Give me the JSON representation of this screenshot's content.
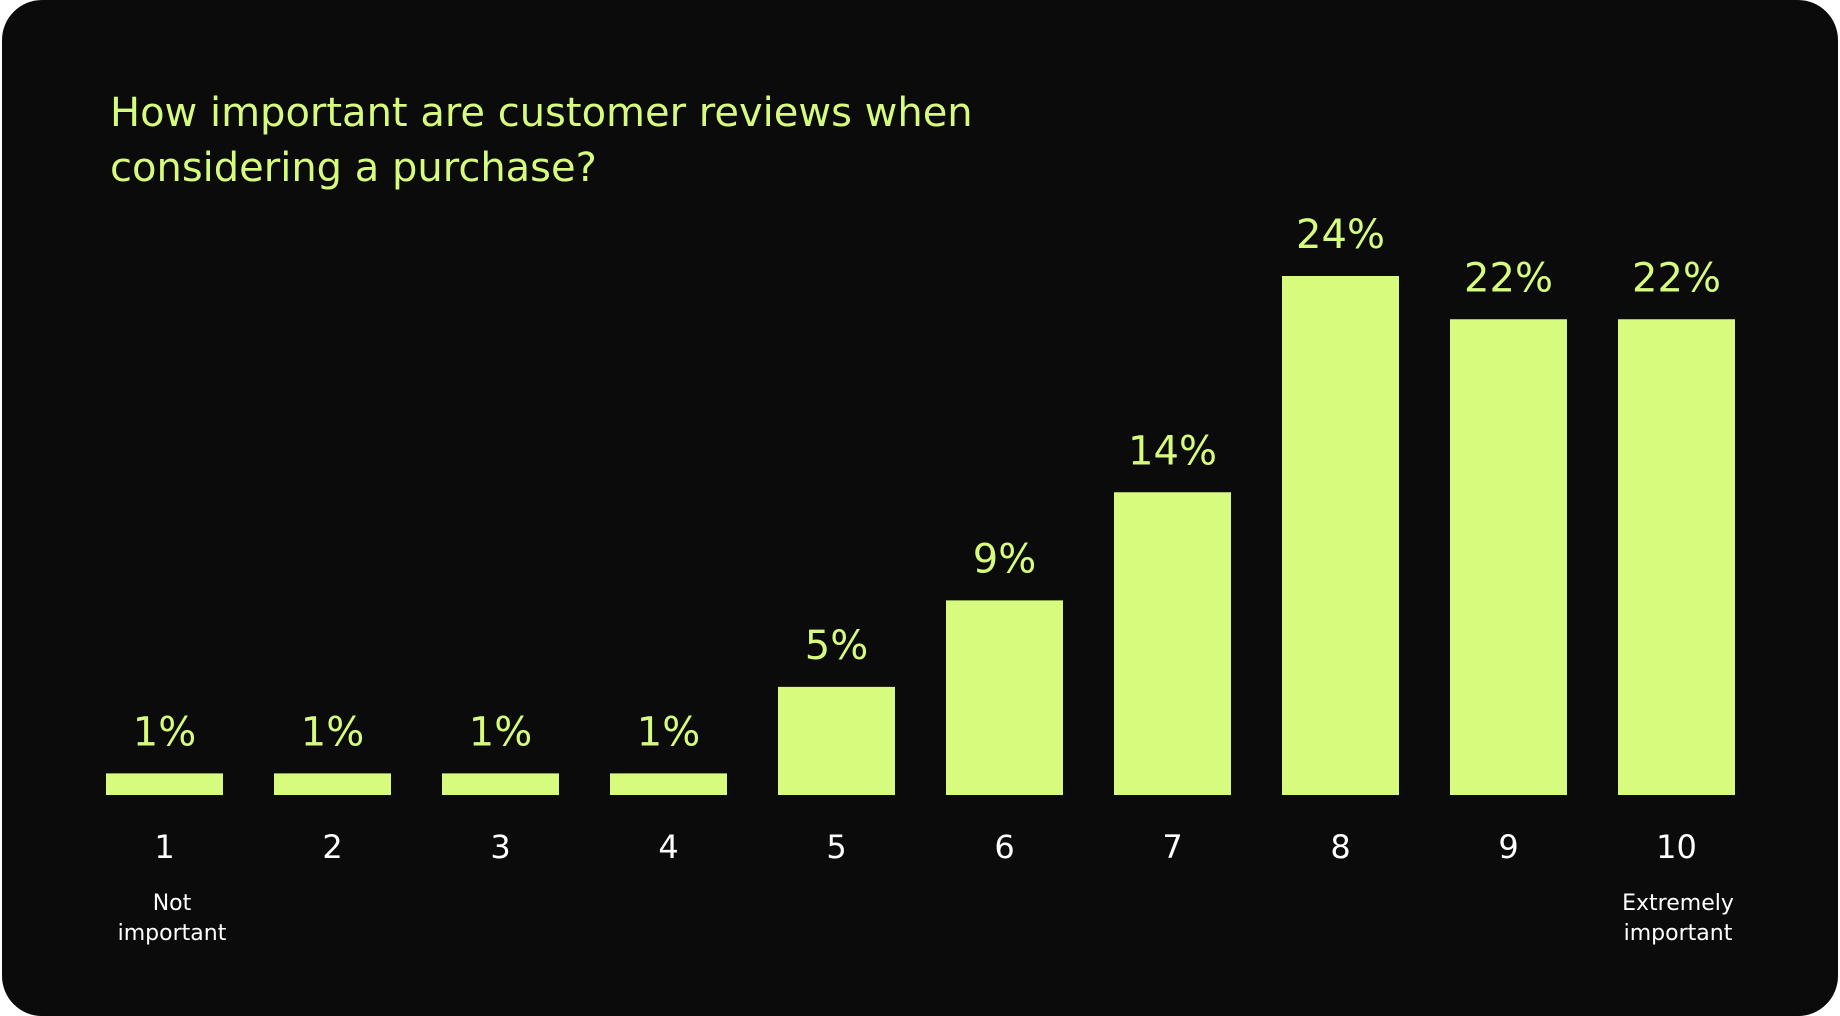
{
  "colors": {
    "background": "#0b0b0b",
    "bar": "#d7fb7c",
    "title": "#d7fb7c",
    "category_text": "#ffffff"
  },
  "chart_data": {
    "type": "bar",
    "title": "How important are customer reviews when considering a purchase?",
    "categories": [
      "1",
      "2",
      "3",
      "4",
      "5",
      "6",
      "7",
      "8",
      "9",
      "10"
    ],
    "values": [
      1,
      1,
      1,
      1,
      5,
      9,
      14,
      24,
      22,
      22
    ],
    "value_labels": [
      "1%",
      "1%",
      "1%",
      "1%",
      "5%",
      "9%",
      "14%",
      "24%",
      "22%",
      "22%"
    ],
    "value_unit": "%",
    "ylim": [
      0,
      24
    ],
    "grid": false,
    "legend": "none",
    "scale_end_labels": {
      "low": "Not\nimportant",
      "high": "Extremely\nimportant"
    }
  }
}
